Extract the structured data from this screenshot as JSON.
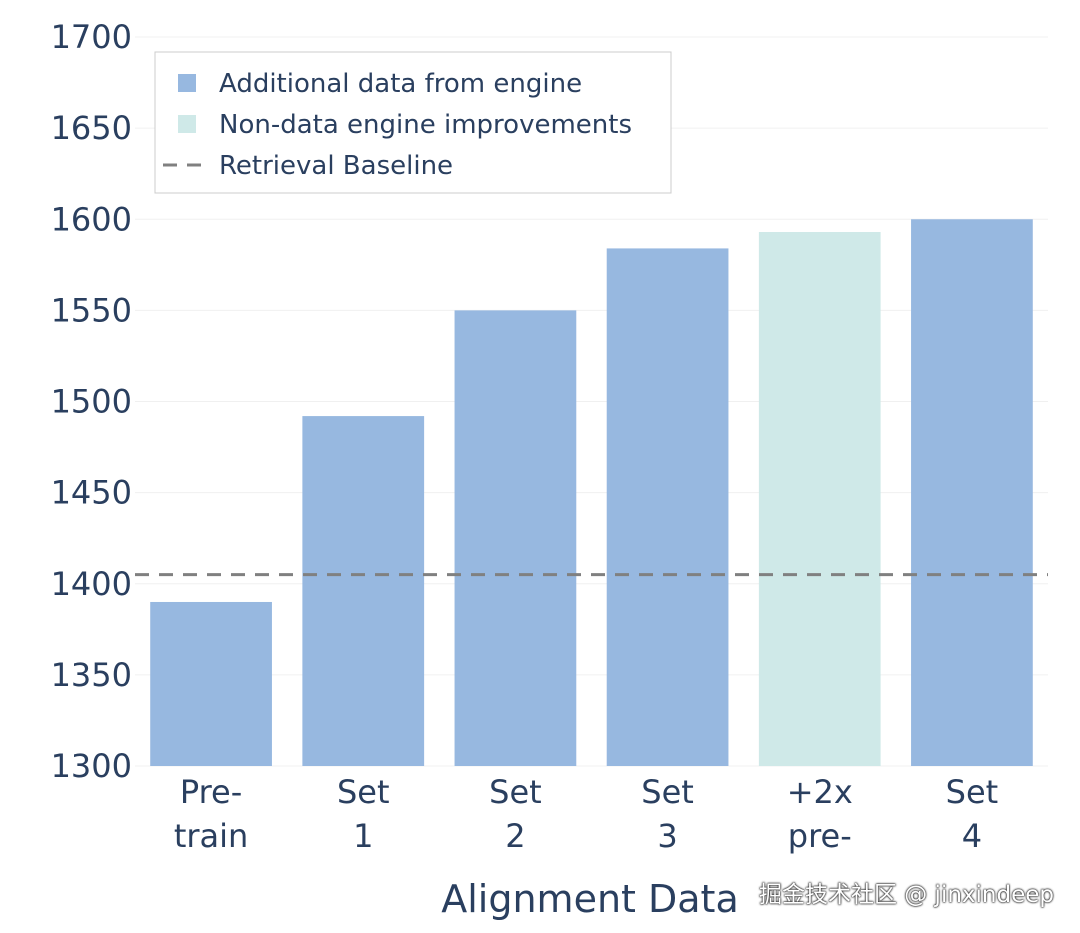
{
  "chart_data": {
    "type": "bar",
    "categories": [
      [
        "Pre-",
        "train"
      ],
      [
        "Set",
        "1"
      ],
      [
        "Set",
        "2"
      ],
      [
        "Set",
        "3"
      ],
      [
        "+2x",
        "pre-"
      ],
      [
        "Set",
        "4"
      ]
    ],
    "values": [
      1390,
      1492,
      1550,
      1584,
      1593,
      1600
    ],
    "bar_groups": [
      "Additional data from engine",
      "Additional data from engine",
      "Additional data from engine",
      "Additional data from engine",
      "Non-data engine improvements",
      "Additional data from engine"
    ],
    "xlabel": "Alignment Data",
    "ylabel": "",
    "ylim": [
      1300,
      1700
    ],
    "yticks": [
      1300,
      1350,
      1400,
      1450,
      1500,
      1550,
      1600,
      1650,
      1700
    ],
    "baseline": {
      "name": "Retrieval Baseline",
      "value": 1405
    },
    "legend": {
      "placement": "top-left",
      "entries": [
        {
          "label": "Additional data from engine",
          "kind": "bar",
          "color": "#97b8e0"
        },
        {
          "label": "Non-data engine improvements",
          "kind": "bar",
          "color": "#cfe9e8"
        },
        {
          "label": "Retrieval Baseline",
          "kind": "dash",
          "color": "#808080"
        }
      ]
    },
    "colors": {
      "Additional data from engine": "#97b8e0",
      "Non-data engine improvements": "#cfe9e8",
      "baseline": "#808080",
      "grid": "#f0f0f0",
      "text": "#2a3f5f"
    },
    "grid": true
  },
  "watermark": "掘金技术社区 @ jinxindeep"
}
